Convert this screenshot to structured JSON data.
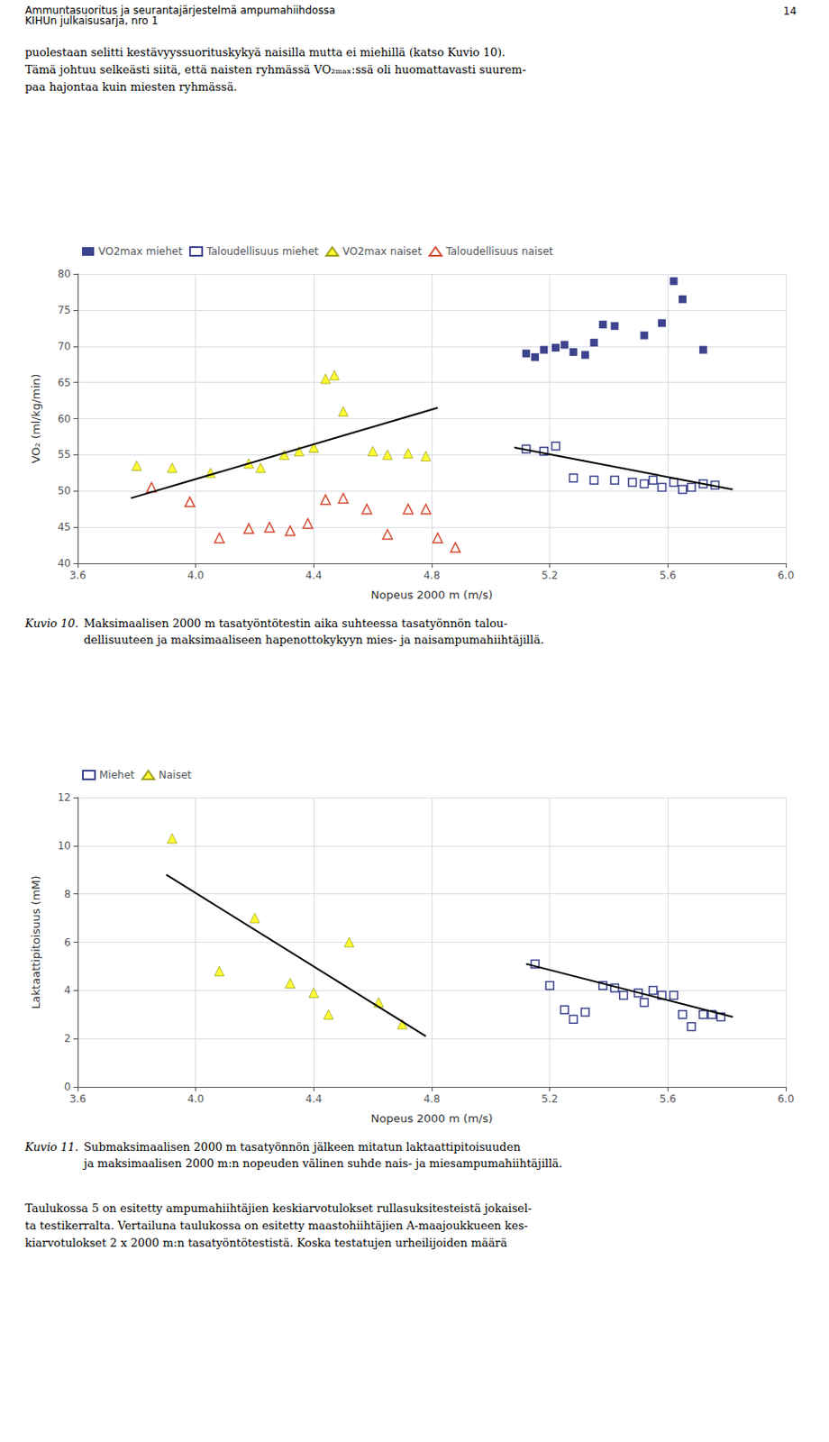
{
  "header": [
    "Ammuntasuoritus ja seurantajärjestelmä ampumahiihdossa",
    "KIHUn julkaisusarja, nro 1"
  ],
  "page_number": "14",
  "body_text": "puolestaan selitti kestävyyssuorituskykyä naisilla mutta ei miehillä (katso Kuvio 10).\nTämä johtuu selkeästi siitä, että naisten ryhmässä VO₂ₘₐₓ:ssä oli huomattavasti suurem-\npaa hajontaa kuin miesten ryhmässä.",
  "bottom_text": "Taulukossa 5 on esitetty ampumahiihtäjien keskiarvotulokset rullasuksitesteistä jokaisel-\nta testikerralta. Vertailuna taulukossa on esitetty maastohiihtäjien A-maajoukkueen kes-\nkiarvotulokset 2 x 2000 m:n tasatyöntötestistä. Koska testatujen urheilijoiden määrä",
  "chart_data": [
    {
      "type": "scatter",
      "title": "Kuvio 10.",
      "subtitle": "Maksimaalisen 2000 m tasatyöntötestin aika suhteessa tasatyönnön talou-\ndellisuuteen ja maksimaaliseen hapenottokykyyn mies- ja naisampumahiihtäjillä.",
      "xlabel": "Nopeus 2000 m (m/s)",
      "ylabel": "VO₂ (ml/kg/min)",
      "xlim": [
        3.6,
        6.0
      ],
      "ylim": [
        40,
        80
      ],
      "xticks": [
        3.6,
        {
          "value": 4.0,
          "label": "4.0"
        },
        4.4,
        4.8,
        5.2,
        5.6,
        {
          "value": 6.0,
          "label": "6.0"
        }
      ],
      "yticks": [
        40,
        45,
        50,
        55,
        60,
        65,
        70,
        75,
        80
      ],
      "grid": true,
      "legend": "upper left",
      "series": [
        {
          "name": "VO2max miehet",
          "type": "scatter",
          "color": "#0d1470",
          "marker": "square",
          "x": [
            5.12,
            5.15,
            5.18,
            5.22,
            5.25,
            5.28,
            5.32,
            5.35,
            5.38,
            5.42,
            5.52,
            5.58,
            5.62,
            5.65,
            5.72
          ],
          "values": [
            69.0,
            68.5,
            69.5,
            69.8,
            70.2,
            69.2,
            68.8,
            70.5,
            73.0,
            72.8,
            71.5,
            73.2,
            79.0,
            76.5,
            69.5
          ]
        },
        {
          "name": "Taloudellisuus miehet",
          "type": "scatter",
          "color": "#0d1470",
          "marker": "open-square",
          "x": [
            5.12,
            5.18,
            5.22,
            5.28,
            5.35,
            5.42,
            5.48,
            5.52,
            5.55,
            5.58,
            5.62,
            5.65,
            5.68,
            5.72,
            5.76
          ],
          "values": [
            55.8,
            55.5,
            56.2,
            51.8,
            51.5,
            51.5,
            51.2,
            51.0,
            51.5,
            50.5,
            51.2,
            50.2,
            50.5,
            51.0,
            50.8
          ]
        },
        {
          "type": "line",
          "color": "#000000",
          "line_style": "solid",
          "x": [
            5.08,
            5.82
          ],
          "values": [
            56.0,
            50.2
          ]
        },
        {
          "name": "VO2max naiset",
          "type": "scatter",
          "color": "#ffff00",
          "marker": "triangle",
          "x": [
            3.8,
            3.92,
            4.05,
            4.18,
            4.22,
            4.3,
            4.35,
            4.4,
            4.44,
            4.47,
            4.5,
            4.6,
            4.65,
            4.72,
            4.78
          ],
          "values": [
            53.5,
            53.2,
            52.5,
            53.8,
            53.2,
            55.0,
            55.5,
            56.0,
            65.5,
            66.0,
            61.0,
            55.5,
            55.0,
            55.2,
            54.8
          ]
        },
        {
          "type": "line",
          "color": "#000000",
          "line_style": "solid",
          "x": [
            3.78,
            4.82
          ],
          "values": [
            49.0,
            61.5
          ]
        },
        {
          "name": "Taloudellisuus naiset",
          "type": "scatter",
          "color": "#cc2200",
          "marker": "open-triangle",
          "x": [
            3.85,
            3.98,
            4.08,
            4.18,
            4.25,
            4.32,
            4.38,
            4.44,
            4.5,
            4.58,
            4.65,
            4.72,
            4.78,
            4.82,
            4.88
          ],
          "values": [
            50.5,
            48.5,
            43.5,
            44.8,
            45.0,
            44.5,
            45.5,
            48.8,
            49.0,
            47.5,
            44.0,
            47.5,
            47.5,
            43.5,
            42.2
          ]
        }
      ]
    },
    {
      "type": "scatter",
      "title": "Kuvio 11.",
      "subtitle": "Submaksimaalisen 2000 m tasatyönnön jälkeen mitatun laktaattipitoisuuden\nja maksimaalisen 2000 m:n nopeuden välinen suhde nais- ja miesampumahiihtäjillä.",
      "xlabel": "Nopeus 2000 m (m/s)",
      "ylabel": "Laktaattipitoisuus (mM)",
      "xlim": [
        3.6,
        6.0
      ],
      "ylim": [
        0,
        12
      ],
      "xticks": [
        3.6,
        {
          "value": 4.0,
          "label": "4.0"
        },
        4.4,
        4.8,
        5.2,
        5.6,
        {
          "value": 6.0,
          "label": "6.0"
        }
      ],
      "yticks": [
        0,
        2,
        4,
        6,
        8,
        10,
        12
      ],
      "grid": true,
      "legend": "upper left",
      "series": [
        {
          "name": "Miehet",
          "type": "scatter",
          "color": "#0d1470",
          "marker": "open-square",
          "x": [
            5.15,
            5.2,
            5.25,
            5.28,
            5.32,
            5.38,
            5.42,
            5.45,
            5.5,
            5.52,
            5.55,
            5.58,
            5.62,
            5.65,
            5.68,
            5.72,
            5.75,
            5.78
          ],
          "values": [
            5.1,
            4.2,
            3.2,
            2.8,
            3.1,
            4.2,
            4.1,
            3.8,
            3.9,
            3.5,
            4.0,
            3.8,
            3.8,
            3.0,
            2.5,
            3.0,
            3.0,
            2.9
          ]
        },
        {
          "type": "line",
          "color": "#000000",
          "line_style": "solid",
          "x": [
            5.12,
            5.82
          ],
          "values": [
            5.1,
            2.9
          ]
        },
        {
          "name": "Naiset",
          "type": "scatter",
          "color": "#ffff00",
          "marker": "triangle",
          "x": [
            3.92,
            4.08,
            4.2,
            4.32,
            4.4,
            4.45,
            4.52,
            4.62,
            4.7
          ],
          "values": [
            10.3,
            4.8,
            7.0,
            4.3,
            3.9,
            3.0,
            6.0,
            3.5,
            2.6
          ]
        },
        {
          "type": "line",
          "color": "#000000",
          "line_style": "solid",
          "x": [
            3.9,
            4.78
          ],
          "values": [
            8.8,
            2.1
          ]
        }
      ]
    }
  ]
}
